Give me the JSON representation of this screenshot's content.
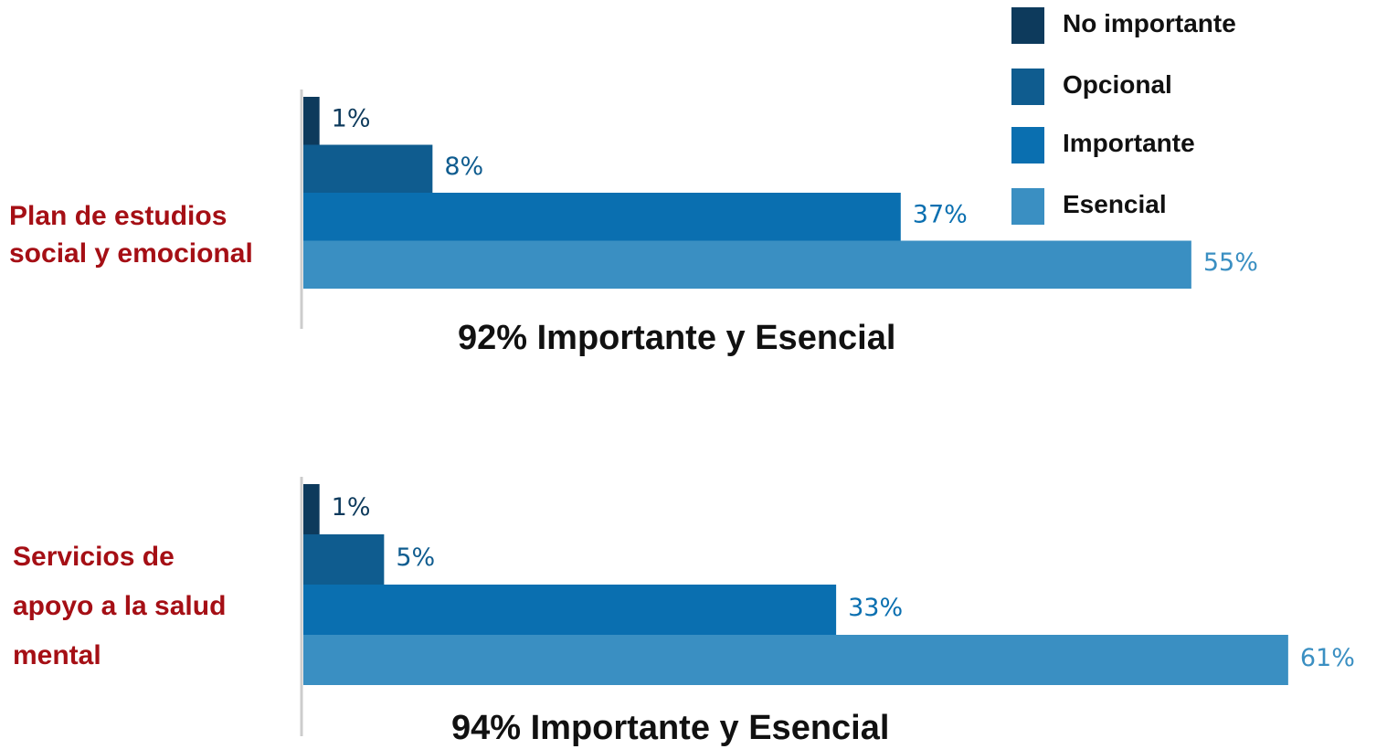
{
  "colors": {
    "group_label": "#a50f15",
    "axis": "#cccccc"
  },
  "legend": [
    {
      "label": "No importante",
      "color": "#0d3a5c"
    },
    {
      "label": "Opcional",
      "color": "#0f5c8f"
    },
    {
      "label": "Importante",
      "color": "#0a6fb0"
    },
    {
      "label": "Esencial",
      "color": "#3a8fc2"
    }
  ],
  "chart_data": [
    {
      "type": "bar",
      "orientation": "horizontal",
      "title": "Plan de estudios social y emocional",
      "categories": [
        "No importante",
        "Opcional",
        "Importante",
        "Esencial"
      ],
      "values": [
        1,
        8,
        37,
        55
      ],
      "value_labels": [
        "1%",
        "8%",
        "37%",
        "55%"
      ],
      "summary": "92% Importante y Esencial",
      "xlim": [
        0,
        61
      ]
    },
    {
      "type": "bar",
      "orientation": "horizontal",
      "title": "Servicios de apoyo a la salud mental",
      "categories": [
        "No importante",
        "Opcional",
        "Importante",
        "Esencial"
      ],
      "values": [
        1,
        5,
        33,
        61
      ],
      "value_labels": [
        "1%",
        "5%",
        "33%",
        "61%"
      ],
      "summary": "94% Importante y Esencial",
      "xlim": [
        0,
        61
      ]
    }
  ]
}
